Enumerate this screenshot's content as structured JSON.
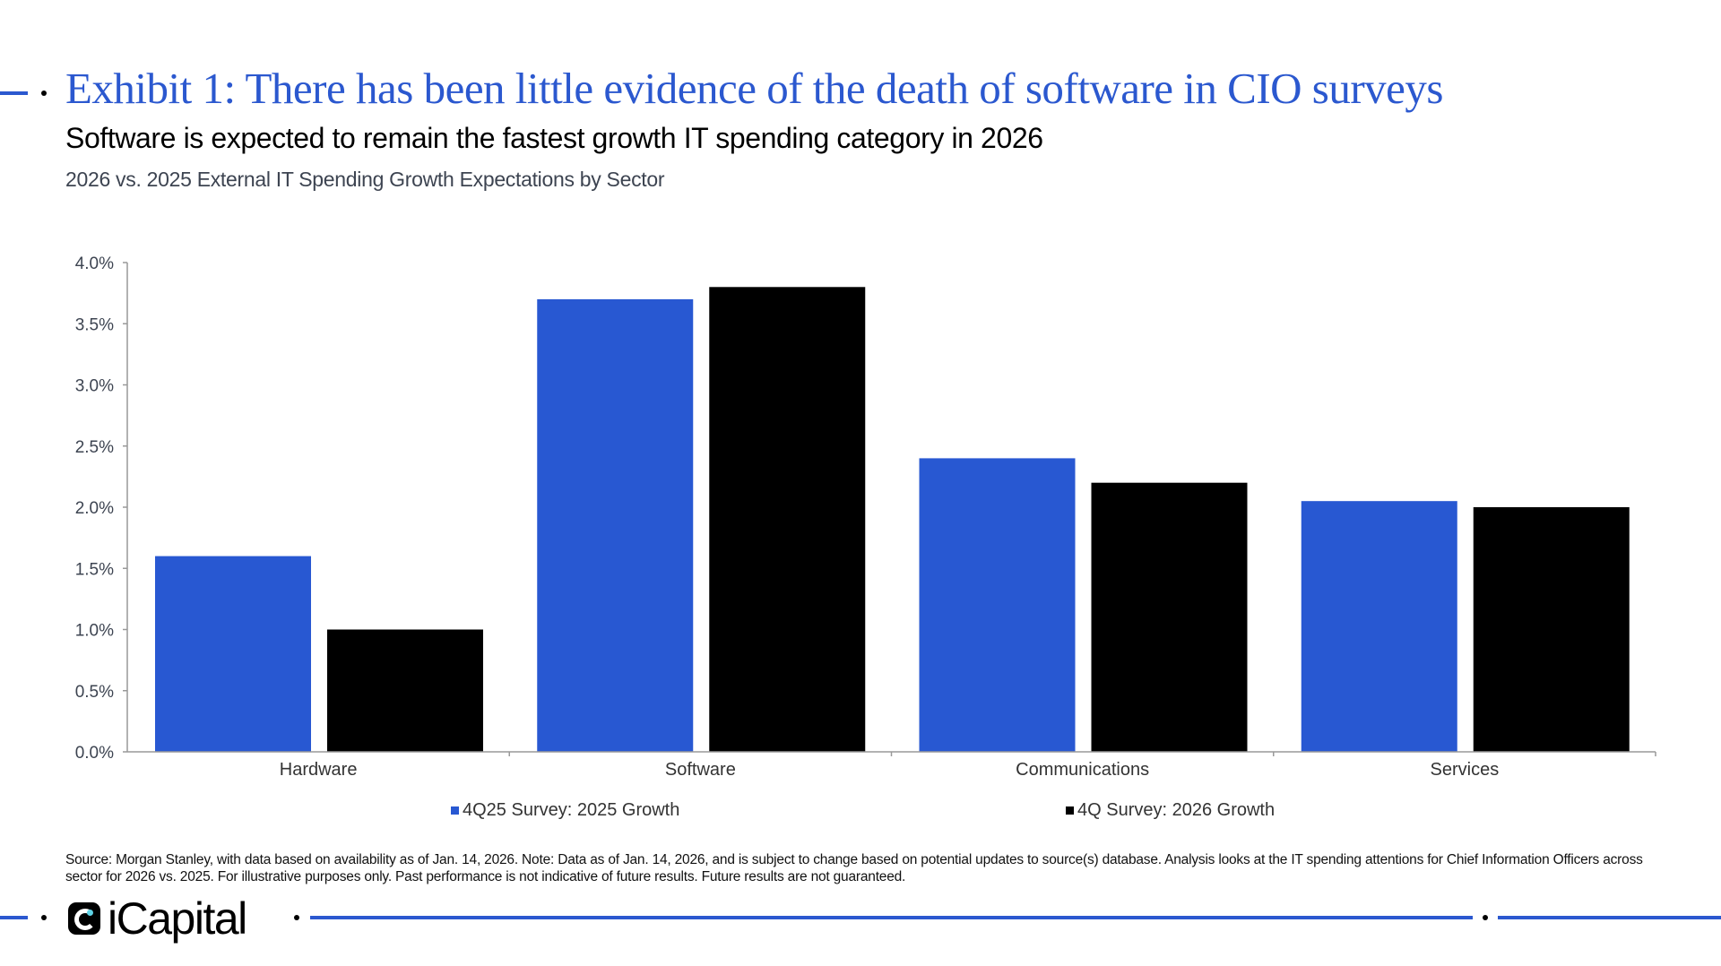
{
  "header": {
    "title": "Exhibit 1: There has been little evidence of the death of software in CIO surveys",
    "subtitle": "Software is expected to remain the fastest growth IT spending category in 2026",
    "chart_heading": "2026 vs. 2025 External IT Spending Growth Expectations by Sector"
  },
  "colors": {
    "accent": "#2b58cf",
    "series1": "#2858d2",
    "series2": "#000000"
  },
  "chart_data": {
    "type": "bar",
    "title": "2026 vs. 2025 External IT Spending Growth Expectations by Sector",
    "xlabel": "",
    "ylabel": "",
    "categories": [
      "Hardware",
      "Software",
      "Communications",
      "Services"
    ],
    "series": [
      {
        "name": "4Q25 Survey: 2025 Growth",
        "values": [
          1.6,
          3.7,
          2.4,
          2.05
        ]
      },
      {
        "name": "4Q Survey: 2026 Growth",
        "values": [
          1.0,
          3.8,
          2.2,
          2.0
        ]
      }
    ],
    "ylim": [
      0,
      4.0
    ],
    "yticks": [
      "0.0%",
      "0.5%",
      "1.0%",
      "1.5%",
      "2.0%",
      "2.5%",
      "3.0%",
      "3.5%",
      "4.0%"
    ],
    "grid": false,
    "legend_placement": "bottom"
  },
  "footer": {
    "source": "Source: Morgan Stanley, with data based on availability as of Jan. 14, 2026. Note: Data as of Jan. 14, 2026, and is subject to change based on potential updates to source(s) database. Analysis looks at the IT spending attentions for Chief Information Officers across sector for 2026 vs. 2025. For illustrative purposes only. Past performance is not indicative of future results. Future results are not guaranteed.",
    "logo": "iCapital"
  }
}
